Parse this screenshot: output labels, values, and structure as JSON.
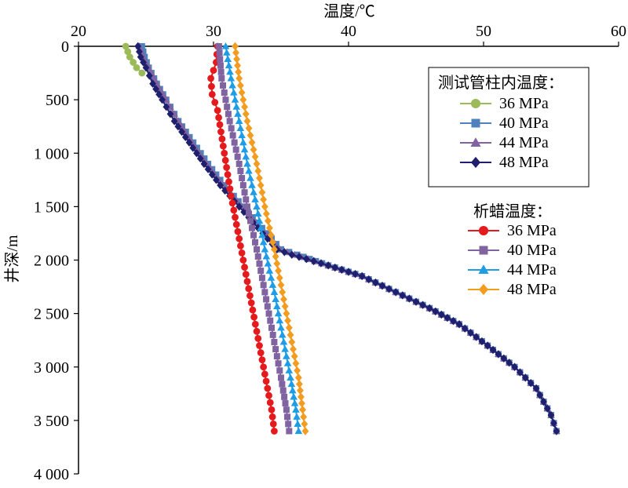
{
  "chart_data": {
    "type": "line",
    "xlabel": "温度/℃",
    "ylabel": "井深/m",
    "xlim": [
      20,
      60
    ],
    "ylim": [
      0,
      4000
    ],
    "x_axis_position": "top",
    "y_axis_inverted": true,
    "grid": false,
    "x_ticks": [
      "20",
      "30",
      "40",
      "50",
      "60"
    ],
    "y_ticks": [
      "0",
      "500",
      "1 000",
      "1 500",
      "2 000",
      "2 500",
      "3 000",
      "3 500",
      "4 000"
    ],
    "legends": [
      {
        "title": "测试管柱内温度：",
        "placement": "top-right",
        "entries": [
          {
            "label": "36 MPa",
            "color": "#9bbb59",
            "marker": "circle"
          },
          {
            "label": "40 MPa",
            "color": "#4f81bd",
            "marker": "square"
          },
          {
            "label": "44 MPa",
            "color": "#8064a2",
            "marker": "triangle"
          },
          {
            "label": "48 MPa",
            "color": "#1f1f6e",
            "marker": "diamond"
          }
        ]
      },
      {
        "title": "析蜡温度：",
        "placement": "middle-right",
        "entries": [
          {
            "label": "36 MPa",
            "color": "#e41a1c",
            "marker": "circle"
          },
          {
            "label": "40 MPa",
            "color": "#8064a2",
            "marker": "square"
          },
          {
            "label": "44 MPa",
            "color": "#1e9de6",
            "marker": "triangle"
          },
          {
            "label": "48 MPa",
            "color": "#f39c1f",
            "marker": "diamond"
          }
        ]
      }
    ],
    "series": [
      {
        "group": "测试管柱内温度：",
        "name": "36 MPa",
        "color": "#9bbb59",
        "marker": "circle",
        "points": [
          [
            23.5,
            0
          ],
          [
            23.8,
            100
          ],
          [
            24.3,
            200
          ],
          [
            24.7,
            250
          ]
        ]
      },
      {
        "group": "测试管柱内温度：",
        "name": "40 MPa",
        "color": "#4f81bd",
        "marker": "square",
        "points": [
          [
            24.7,
            0
          ],
          [
            24.9,
            100
          ],
          [
            25.2,
            200
          ],
          [
            25.8,
            350
          ],
          [
            26.5,
            500
          ],
          [
            27.4,
            700
          ],
          [
            28.5,
            900
          ],
          [
            29.6,
            1100
          ],
          [
            30.8,
            1300
          ],
          [
            32.2,
            1500
          ],
          [
            33.6,
            1700
          ],
          [
            35.0,
            1900
          ],
          [
            36.2,
            1950
          ],
          [
            38.5,
            2050
          ],
          [
            41,
            2150
          ],
          [
            43.5,
            2300
          ],
          [
            46,
            2450
          ],
          [
            48.2,
            2600
          ],
          [
            50.3,
            2800
          ],
          [
            52.3,
            3000
          ],
          [
            53.9,
            3200
          ],
          [
            55.0,
            3450
          ],
          [
            55.4,
            3600
          ]
        ]
      },
      {
        "group": "测试管柱内温度：",
        "name": "44 MPa",
        "color": "#8064a2",
        "marker": "triangle",
        "points": [
          [
            24.5,
            0
          ],
          [
            24.8,
            100
          ],
          [
            25.2,
            200
          ],
          [
            25.8,
            350
          ],
          [
            26.5,
            500
          ],
          [
            27.4,
            700
          ],
          [
            28.4,
            900
          ],
          [
            29.5,
            1100
          ],
          [
            30.7,
            1300
          ],
          [
            32.1,
            1500
          ],
          [
            33.5,
            1700
          ],
          [
            34.9,
            1900
          ],
          [
            36.0,
            1950
          ],
          [
            38.5,
            2050
          ],
          [
            41,
            2150
          ],
          [
            43.5,
            2300
          ],
          [
            46,
            2450
          ],
          [
            48.2,
            2600
          ],
          [
            50.3,
            2800
          ],
          [
            52.3,
            3000
          ],
          [
            53.9,
            3200
          ],
          [
            55.0,
            3450
          ],
          [
            55.4,
            3600
          ]
        ]
      },
      {
        "group": "测试管柱内温度：",
        "name": "48 MPa",
        "color": "#1f1f6e",
        "marker": "diamond",
        "points": [
          [
            24.4,
            0
          ],
          [
            24.6,
            100
          ],
          [
            25.0,
            200
          ],
          [
            25.5,
            350
          ],
          [
            26.2,
            500
          ],
          [
            27.1,
            700
          ],
          [
            28.2,
            900
          ],
          [
            29.3,
            1100
          ],
          [
            30.5,
            1300
          ],
          [
            31.9,
            1500
          ],
          [
            33.3,
            1700
          ],
          [
            34.7,
            1900
          ],
          [
            35.8,
            1950
          ],
          [
            38.5,
            2050
          ],
          [
            41,
            2150
          ],
          [
            43.5,
            2300
          ],
          [
            46,
            2450
          ],
          [
            48.2,
            2600
          ],
          [
            50.3,
            2800
          ],
          [
            52.3,
            3000
          ],
          [
            53.9,
            3200
          ],
          [
            55.0,
            3450
          ],
          [
            55.4,
            3600
          ]
        ]
      },
      {
        "group": "析蜡温度：",
        "name": "36 MPa",
        "color": "#e41a1c",
        "marker": "circle",
        "points": [
          [
            30.3,
            0
          ],
          [
            30.2,
            150
          ],
          [
            29.8,
            300
          ],
          [
            29.9,
            450
          ],
          [
            30.3,
            600
          ],
          [
            30.8,
            1000
          ],
          [
            31.3,
            1400
          ],
          [
            31.9,
            1800
          ],
          [
            32.5,
            2200
          ],
          [
            33.1,
            2600
          ],
          [
            33.7,
            3000
          ],
          [
            34.3,
            3400
          ],
          [
            34.5,
            3600
          ]
        ]
      },
      {
        "group": "析蜡温度：",
        "name": "40 MPa",
        "color": "#8064a2",
        "marker": "square",
        "points": [
          [
            30.4,
            0
          ],
          [
            30.6,
            300
          ],
          [
            31.2,
            700
          ],
          [
            31.9,
            1100
          ],
          [
            32.5,
            1500
          ],
          [
            33.2,
            1900
          ],
          [
            33.8,
            2300
          ],
          [
            34.4,
            2700
          ],
          [
            35.0,
            3100
          ],
          [
            35.4,
            3400
          ],
          [
            35.6,
            3600
          ]
        ]
      },
      {
        "group": "析蜡温度：",
        "name": "44 MPa",
        "color": "#1e9de6",
        "marker": "triangle",
        "points": [
          [
            30.9,
            0
          ],
          [
            31.3,
            300
          ],
          [
            31.9,
            700
          ],
          [
            32.5,
            1100
          ],
          [
            33.2,
            1500
          ],
          [
            33.8,
            1900
          ],
          [
            34.5,
            2300
          ],
          [
            35.1,
            2700
          ],
          [
            35.7,
            3100
          ],
          [
            36.1,
            3400
          ],
          [
            36.3,
            3600
          ]
        ]
      },
      {
        "group": "析蜡温度：",
        "name": "48 MPa",
        "color": "#f39c1f",
        "marker": "diamond",
        "points": [
          [
            31.6,
            0
          ],
          [
            31.9,
            300
          ],
          [
            32.5,
            700
          ],
          [
            33.2,
            1100
          ],
          [
            33.8,
            1500
          ],
          [
            34.5,
            1900
          ],
          [
            35.1,
            2300
          ],
          [
            35.7,
            2700
          ],
          [
            36.3,
            3100
          ],
          [
            36.6,
            3400
          ],
          [
            36.8,
            3600
          ]
        ]
      }
    ]
  }
}
